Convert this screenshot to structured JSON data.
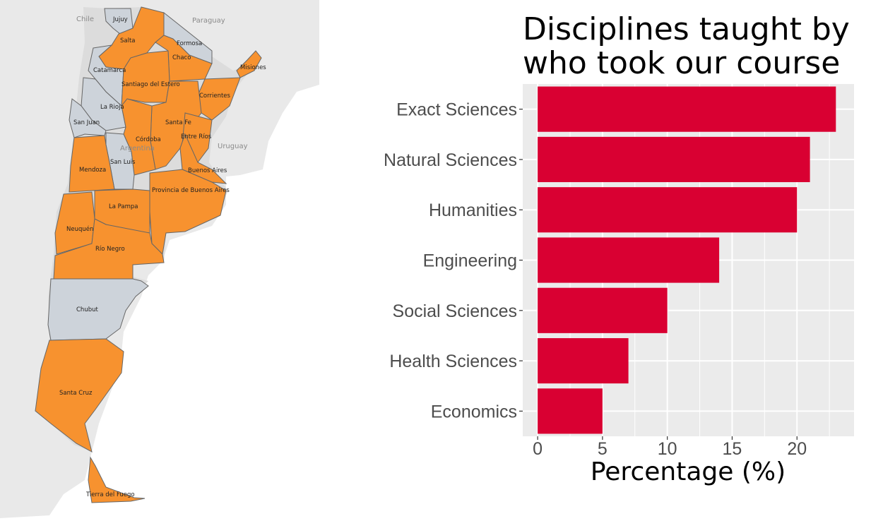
{
  "map": {
    "countries": [
      "Chile",
      "Paraguay",
      "Uruguay",
      "Argentina"
    ],
    "colors": {
      "selected": "#f7922f",
      "unselected": "#cdd3da",
      "land": "#e9e9e9",
      "border": "#666666"
    },
    "provinces": [
      {
        "name": "Jujuy",
        "selected": false
      },
      {
        "name": "Salta",
        "selected": true
      },
      {
        "name": "Formosa",
        "selected": false
      },
      {
        "name": "Chaco",
        "selected": true
      },
      {
        "name": "Misiones",
        "selected": true
      },
      {
        "name": "Catamarca",
        "selected": false
      },
      {
        "name": "Santiago del Estero",
        "selected": true
      },
      {
        "name": "Corrientes",
        "selected": true
      },
      {
        "name": "La Rioja",
        "selected": false
      },
      {
        "name": "San Juan",
        "selected": false
      },
      {
        "name": "Santa Fe",
        "selected": true
      },
      {
        "name": "Córdoba",
        "selected": true
      },
      {
        "name": "Entre Ríos",
        "selected": true
      },
      {
        "name": "San Luis",
        "selected": false
      },
      {
        "name": "Mendoza",
        "selected": true
      },
      {
        "name": "Buenos Aires",
        "selected": true
      },
      {
        "name": "Provincia de Buenos Aires",
        "selected": true
      },
      {
        "name": "La Pampa",
        "selected": true
      },
      {
        "name": "Neuquén",
        "selected": true
      },
      {
        "name": "Río Negro",
        "selected": true
      },
      {
        "name": "Chubut",
        "selected": false
      },
      {
        "name": "Santa Cruz",
        "selected": true
      },
      {
        "name": "Tierra del Fuego",
        "selected": true
      }
    ]
  },
  "chart_data": {
    "type": "bar",
    "orientation": "horizontal",
    "title_lines": [
      "Disciplines taught by",
      "who took our course"
    ],
    "xlabel": "Percentage (%)",
    "ylabel": "",
    "categories": [
      "Exact Sciences",
      "Natural Sciences",
      "Humanities",
      "Engineering",
      "Social Sciences",
      "Health Sciences",
      "Economics"
    ],
    "values": [
      23,
      21,
      20,
      14,
      10,
      7,
      5
    ],
    "xlim": [
      -1.15,
      24.4
    ],
    "xticks": [
      0,
      5,
      10,
      15,
      20
    ],
    "grid": true,
    "legend": "none",
    "colors": {
      "bar": "#d90032",
      "panel": "#ebebeb",
      "grid": "#ffffff"
    }
  }
}
